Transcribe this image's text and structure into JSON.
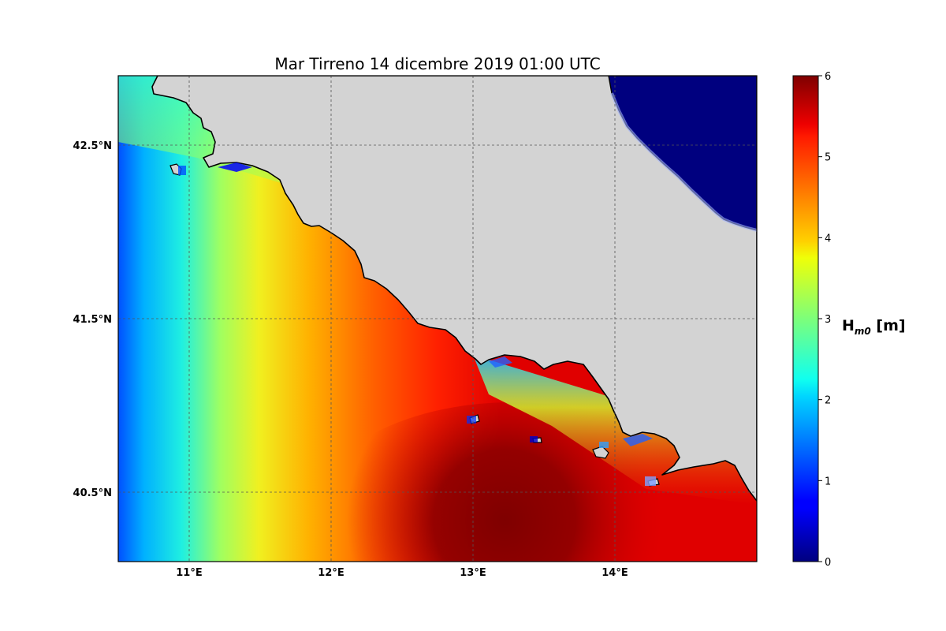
{
  "map": {
    "title": "Mar Tirreno  14 dicembre 2019  01:00 UTC",
    "lon_labels": [
      "11°E",
      "12°E",
      "13°E",
      "14°E"
    ],
    "lat_labels": [
      "42.5°N",
      "41.5°N",
      "40.5°N"
    ],
    "lon_range": [
      10.5,
      15.0
    ],
    "lat_range": [
      40.1,
      42.9
    ],
    "grid": true,
    "land_color": "#d3d3d3",
    "islands": [
      "Giglio",
      "Ponza",
      "Ventotene",
      "Ischia",
      "Capri"
    ]
  },
  "colorbar": {
    "label_main": "H",
    "label_sub": "m0",
    "label_unit": " [m]",
    "ticks": [
      "0",
      "1",
      "2",
      "3",
      "4",
      "5",
      "6"
    ],
    "range": [
      0,
      6
    ],
    "colormap": "jet"
  }
}
